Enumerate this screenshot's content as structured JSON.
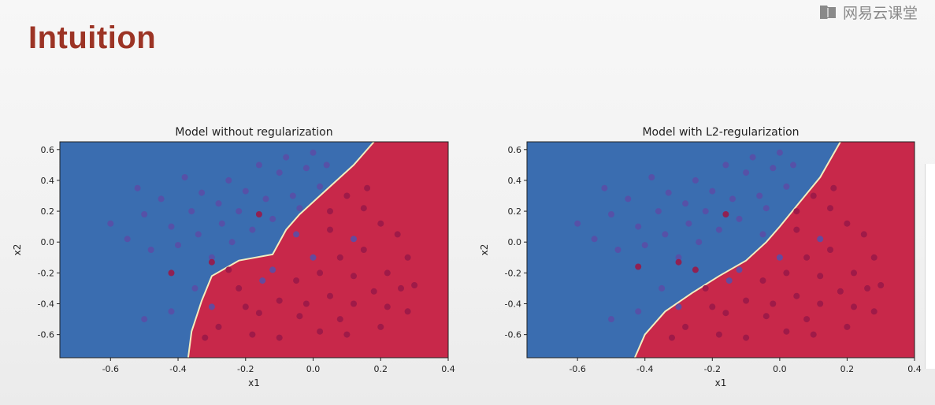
{
  "slide": {
    "title": "Intuition"
  },
  "brand": {
    "name": "网易云课堂",
    "icon": "book-icon"
  },
  "colors": {
    "blue_region": "#3a6db0",
    "red_region": "#c8284a",
    "boundary": "#f3edbf",
    "blue_point": "#5a4ea6",
    "red_point": "#9a1848",
    "title": "#9c3425"
  },
  "chart_data": [
    {
      "type": "scatter",
      "title": "Model without regularization",
      "xlabel": "x1",
      "ylabel": "x2",
      "xlim": [
        -0.75,
        0.4
      ],
      "ylim": [
        -0.75,
        0.65
      ],
      "xticks": [
        "-0.6",
        "-0.4",
        "-0.2",
        "0.0",
        "0.2",
        "0.4"
      ],
      "yticks": [
        "0.6",
        "0.4",
        "0.2",
        "0.0",
        "-0.2",
        "-0.4",
        "-0.6"
      ],
      "decision_boundary": [
        [
          -0.37,
          -0.75
        ],
        [
          -0.36,
          -0.58
        ],
        [
          -0.33,
          -0.38
        ],
        [
          -0.3,
          -0.22
        ],
        [
          -0.22,
          -0.12
        ],
        [
          -0.12,
          -0.08
        ],
        [
          -0.08,
          0.08
        ],
        [
          -0.04,
          0.18
        ],
        [
          0.02,
          0.3
        ],
        [
          0.12,
          0.5
        ],
        [
          0.18,
          0.65
        ]
      ],
      "series": [
        {
          "name": "blue",
          "points": [
            [
              -0.6,
              0.12
            ],
            [
              -0.55,
              0.02
            ],
            [
              -0.52,
              0.35
            ],
            [
              -0.5,
              0.18
            ],
            [
              -0.48,
              -0.05
            ],
            [
              -0.45,
              0.28
            ],
            [
              -0.42,
              0.1
            ],
            [
              -0.4,
              -0.02
            ],
            [
              -0.38,
              0.42
            ],
            [
              -0.36,
              0.2
            ],
            [
              -0.34,
              0.05
            ],
            [
              -0.33,
              0.32
            ],
            [
              -0.3,
              -0.1
            ],
            [
              -0.28,
              0.25
            ],
            [
              -0.27,
              0.12
            ],
            [
              -0.25,
              0.4
            ],
            [
              -0.24,
              0.0
            ],
            [
              -0.22,
              0.2
            ],
            [
              -0.2,
              0.33
            ],
            [
              -0.18,
              0.08
            ],
            [
              -0.16,
              0.5
            ],
            [
              -0.14,
              0.28
            ],
            [
              -0.12,
              0.15
            ],
            [
              -0.1,
              0.45
            ],
            [
              -0.08,
              0.55
            ],
            [
              -0.06,
              0.3
            ],
            [
              -0.04,
              0.22
            ],
            [
              -0.02,
              0.48
            ],
            [
              0.0,
              0.58
            ],
            [
              0.02,
              0.36
            ],
            [
              0.04,
              0.5
            ],
            [
              -0.15,
              -0.25
            ],
            [
              -0.35,
              -0.3
            ],
            [
              -0.42,
              -0.45
            ],
            [
              -0.5,
              -0.5
            ],
            [
              -0.3,
              -0.42
            ],
            [
              0.0,
              -0.1
            ],
            [
              -0.12,
              -0.18
            ],
            [
              0.12,
              0.02
            ],
            [
              -0.05,
              0.05
            ]
          ]
        },
        {
          "name": "red",
          "points": [
            [
              0.05,
              0.2
            ],
            [
              0.1,
              0.3
            ],
            [
              0.15,
              0.22
            ],
            [
              0.2,
              0.12
            ],
            [
              0.25,
              0.05
            ],
            [
              0.28,
              -0.1
            ],
            [
              0.22,
              -0.2
            ],
            [
              0.18,
              -0.32
            ],
            [
              0.12,
              -0.4
            ],
            [
              0.08,
              -0.5
            ],
            [
              0.02,
              -0.58
            ],
            [
              -0.04,
              -0.48
            ],
            [
              -0.1,
              -0.38
            ],
            [
              -0.16,
              -0.46
            ],
            [
              -0.22,
              -0.3
            ],
            [
              -0.28,
              -0.55
            ],
            [
              -0.32,
              -0.62
            ],
            [
              -0.25,
              -0.18
            ],
            [
              -0.18,
              -0.6
            ],
            [
              -0.1,
              -0.62
            ],
            [
              -0.05,
              -0.25
            ],
            [
              0.02,
              -0.2
            ],
            [
              0.08,
              -0.1
            ],
            [
              0.15,
              -0.05
            ],
            [
              0.22,
              -0.42
            ],
            [
              0.26,
              -0.3
            ],
            [
              0.3,
              -0.28
            ],
            [
              0.16,
              0.35
            ],
            [
              -0.16,
              0.18
            ],
            [
              -0.3,
              -0.13
            ],
            [
              -0.42,
              -0.2
            ],
            [
              0.1,
              -0.6
            ],
            [
              -0.02,
              -0.4
            ],
            [
              0.05,
              -0.35
            ],
            [
              -0.2,
              -0.42
            ],
            [
              0.2,
              -0.55
            ],
            [
              0.28,
              -0.45
            ],
            [
              0.12,
              -0.22
            ],
            [
              0.05,
              0.08
            ]
          ]
        }
      ]
    },
    {
      "type": "scatter",
      "title": "Model with L2-regularization",
      "xlabel": "x1",
      "ylabel": "x2",
      "xlim": [
        -0.75,
        0.4
      ],
      "ylim": [
        -0.75,
        0.65
      ],
      "xticks": [
        "-0.6",
        "-0.4",
        "-0.2",
        "0.0",
        "0.2",
        "0.4"
      ],
      "yticks": [
        "0.6",
        "0.4",
        "0.2",
        "0.0",
        "-0.2",
        "-0.4",
        "-0.6"
      ],
      "decision_boundary": [
        [
          -0.43,
          -0.75
        ],
        [
          -0.4,
          -0.6
        ],
        [
          -0.34,
          -0.45
        ],
        [
          -0.26,
          -0.33
        ],
        [
          -0.18,
          -0.22
        ],
        [
          -0.1,
          -0.12
        ],
        [
          -0.04,
          0.0
        ],
        [
          0.0,
          0.1
        ],
        [
          0.06,
          0.26
        ],
        [
          0.12,
          0.42
        ],
        [
          0.18,
          0.65
        ]
      ],
      "series": [
        {
          "name": "blue",
          "points": [
            [
              -0.6,
              0.12
            ],
            [
              -0.55,
              0.02
            ],
            [
              -0.52,
              0.35
            ],
            [
              -0.5,
              0.18
            ],
            [
              -0.48,
              -0.05
            ],
            [
              -0.45,
              0.28
            ],
            [
              -0.42,
              0.1
            ],
            [
              -0.4,
              -0.02
            ],
            [
              -0.38,
              0.42
            ],
            [
              -0.36,
              0.2
            ],
            [
              -0.34,
              0.05
            ],
            [
              -0.33,
              0.32
            ],
            [
              -0.3,
              -0.1
            ],
            [
              -0.28,
              0.25
            ],
            [
              -0.27,
              0.12
            ],
            [
              -0.25,
              0.4
            ],
            [
              -0.24,
              0.0
            ],
            [
              -0.22,
              0.2
            ],
            [
              -0.2,
              0.33
            ],
            [
              -0.18,
              0.08
            ],
            [
              -0.16,
              0.5
            ],
            [
              -0.14,
              0.28
            ],
            [
              -0.12,
              0.15
            ],
            [
              -0.1,
              0.45
            ],
            [
              -0.08,
              0.55
            ],
            [
              -0.06,
              0.3
            ],
            [
              -0.04,
              0.22
            ],
            [
              -0.02,
              0.48
            ],
            [
              0.0,
              0.58
            ],
            [
              0.02,
              0.36
            ],
            [
              0.04,
              0.5
            ],
            [
              -0.15,
              -0.25
            ],
            [
              -0.35,
              -0.3
            ],
            [
              -0.42,
              -0.45
            ],
            [
              -0.5,
              -0.5
            ],
            [
              -0.3,
              -0.42
            ],
            [
              0.0,
              -0.1
            ],
            [
              -0.12,
              -0.18
            ],
            [
              0.12,
              0.02
            ],
            [
              -0.05,
              0.05
            ]
          ]
        },
        {
          "name": "red",
          "points": [
            [
              0.05,
              0.2
            ],
            [
              0.1,
              0.3
            ],
            [
              0.15,
              0.22
            ],
            [
              0.2,
              0.12
            ],
            [
              0.25,
              0.05
            ],
            [
              0.28,
              -0.1
            ],
            [
              0.22,
              -0.2
            ],
            [
              0.18,
              -0.32
            ],
            [
              0.12,
              -0.4
            ],
            [
              0.08,
              -0.5
            ],
            [
              0.02,
              -0.58
            ],
            [
              -0.04,
              -0.48
            ],
            [
              -0.1,
              -0.38
            ],
            [
              -0.16,
              -0.46
            ],
            [
              -0.22,
              -0.3
            ],
            [
              -0.28,
              -0.55
            ],
            [
              -0.32,
              -0.62
            ],
            [
              -0.25,
              -0.18
            ],
            [
              -0.18,
              -0.6
            ],
            [
              -0.1,
              -0.62
            ],
            [
              -0.05,
              -0.25
            ],
            [
              0.02,
              -0.2
            ],
            [
              0.08,
              -0.1
            ],
            [
              0.15,
              -0.05
            ],
            [
              0.22,
              -0.42
            ],
            [
              0.26,
              -0.3
            ],
            [
              0.3,
              -0.28
            ],
            [
              0.16,
              0.35
            ],
            [
              -0.16,
              0.18
            ],
            [
              -0.3,
              -0.13
            ],
            [
              -0.42,
              -0.16
            ],
            [
              0.1,
              -0.6
            ],
            [
              -0.02,
              -0.4
            ],
            [
              0.05,
              -0.35
            ],
            [
              -0.2,
              -0.42
            ],
            [
              0.2,
              -0.55
            ],
            [
              0.28,
              -0.45
            ],
            [
              0.12,
              -0.22
            ],
            [
              0.05,
              0.08
            ]
          ]
        }
      ]
    }
  ]
}
